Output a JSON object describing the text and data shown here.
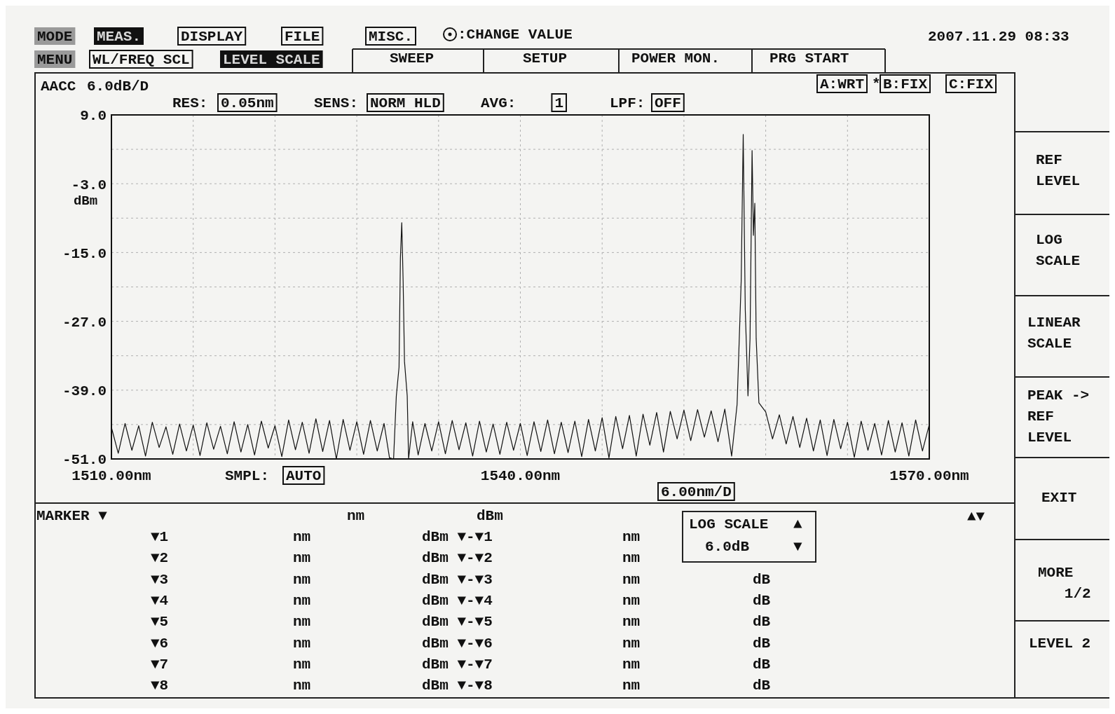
{
  "chart_data": {
    "type": "line",
    "ylabel": "dBm",
    "xlim": [
      1510,
      1570
    ],
    "ylim": [
      -51,
      9
    ],
    "grid": true,
    "xticks": [
      {
        "value": 1510,
        "label": "1510.00nm"
      },
      {
        "value": 1516,
        "label": null
      },
      {
        "value": 1522,
        "label": null
      },
      {
        "value": 1528,
        "label": null
      },
      {
        "value": 1534,
        "label": null
      },
      {
        "value": 1540,
        "label": "1540.00nm"
      },
      {
        "value": 1546,
        "label": null
      },
      {
        "value": 1552,
        "label": null
      },
      {
        "value": 1558,
        "label": null
      },
      {
        "value": 1564,
        "label": null
      },
      {
        "value": 1570,
        "label": "1570.00nm"
      }
    ],
    "yticks": [
      {
        "value": 9,
        "label": "9.0"
      },
      {
        "value": 3,
        "label": null
      },
      {
        "value": -3,
        "label": "-3.0"
      },
      {
        "value": -9,
        "label": null
      },
      {
        "value": -15,
        "label": "-15.0"
      },
      {
        "value": -21,
        "label": null
      },
      {
        "value": -27,
        "label": "-27.0"
      },
      {
        "value": -33,
        "label": null
      },
      {
        "value": -39,
        "label": "-39.0"
      },
      {
        "value": -45,
        "label": null
      },
      {
        "value": -51,
        "label": "-51.0"
      }
    ],
    "x": [
      1510,
      1510.5,
      1511,
      1511.5,
      1512,
      1512.5,
      1513,
      1513.5,
      1514,
      1514.5,
      1515,
      1515.5,
      1516,
      1516.5,
      1517,
      1517.5,
      1518,
      1518.5,
      1519,
      1519.5,
      1520,
      1520.5,
      1521,
      1521.5,
      1522,
      1522.5,
      1523,
      1523.5,
      1524,
      1524.5,
      1525,
      1525.5,
      1526,
      1526.5,
      1527,
      1527.5,
      1528,
      1528.5,
      1529,
      1529.5,
      1530,
      1530.4,
      1530.7,
      1530.9,
      1531.1,
      1531.2,
      1531.3,
      1531.4,
      1531.5,
      1531.7,
      1531.8,
      1532.1,
      1532.5,
      1533,
      1533.5,
      1534,
      1534.5,
      1535,
      1535.5,
      1536,
      1536.5,
      1537,
      1537.5,
      1538,
      1538.5,
      1539,
      1539.5,
      1540,
      1540.5,
      1541,
      1541.5,
      1542,
      1542.5,
      1543,
      1543.5,
      1544,
      1544.5,
      1545,
      1545.5,
      1546,
      1546.5,
      1547,
      1547.5,
      1548,
      1548.5,
      1549,
      1549.5,
      1550,
      1550.5,
      1551,
      1551.5,
      1552,
      1552.5,
      1553,
      1553.5,
      1554,
      1554.5,
      1555,
      1555.5,
      1555.9,
      1556.2,
      1556.35,
      1556.5,
      1556.7,
      1556.85,
      1557,
      1557.1,
      1557.2,
      1557.3,
      1557.5,
      1558,
      1558.5,
      1559,
      1559.5,
      1560,
      1560.5,
      1561,
      1561.5,
      1562,
      1562.5,
      1563,
      1563.5,
      1564,
      1564.5,
      1565,
      1565.5,
      1566,
      1566.5,
      1567,
      1567.5,
      1568,
      1568.5,
      1569,
      1569.5,
      1570
    ],
    "series": [
      {
        "color": "#111111",
        "values": [
          -45.5,
          -50,
          -44.8,
          -49.5,
          -45.2,
          -50.5,
          -44.6,
          -49,
          -45.4,
          -50.2,
          -44.9,
          -49.6,
          -45.1,
          -50.4,
          -44.7,
          -49.3,
          -45.3,
          -50.1,
          -44.5,
          -49.8,
          -45,
          -50.3,
          -44.4,
          -49.1,
          -45.2,
          -50.6,
          -44.2,
          -49.4,
          -44.6,
          -50,
          -44,
          -49.7,
          -44.3,
          -51,
          -44.1,
          -49.5,
          -44.5,
          -50.2,
          -44.3,
          -49.6,
          -44.8,
          -50.8,
          -51,
          -40,
          -35,
          -16,
          -9.8,
          -20,
          -34,
          -40,
          -51,
          -44.5,
          -50.3,
          -44.8,
          -49.6,
          -44.5,
          -50.1,
          -44.3,
          -49.4,
          -44.7,
          -50.5,
          -44.4,
          -49.8,
          -44.9,
          -50.2,
          -44.6,
          -49.5,
          -44.8,
          -50.4,
          -44.5,
          -49.7,
          -44.2,
          -50.1,
          -44.6,
          -49.9,
          -44.4,
          -50.6,
          -44.1,
          -49.6,
          -43.8,
          -50.8,
          -43.6,
          -49.2,
          -43.4,
          -50.5,
          -43.2,
          -48.6,
          -42.9,
          -49.8,
          -42.7,
          -47.5,
          -42.5,
          -47.8,
          -42.4,
          -47.2,
          -42.6,
          -48,
          -42.3,
          -50.5,
          -41.5,
          -20,
          5.6,
          -25,
          -40,
          -30,
          2.8,
          -12,
          -6.4,
          -30,
          -41.2,
          -42.8,
          -47.5,
          -43.3,
          -48.4,
          -43.6,
          -49,
          -43.9,
          -49.6,
          -44.2,
          -50.4,
          -44.1,
          -49.2,
          -44.6,
          -50.7,
          -44.4,
          -49.5,
          -44.8,
          -50.3,
          -44.3,
          -49.8,
          -44.7,
          -50.5,
          -44.2,
          -49.6,
          -45
        ]
      }
    ],
    "annotations": [
      "MODE",
      "MEAS.",
      "DISPLAY",
      "FILE",
      "MISC.",
      ":CHANGE VALUE",
      "2007.11.29 08:33",
      "MENU",
      "WL/FREQ SCL",
      "LEVEL SCALE",
      "SWEEP",
      "SETUP",
      "POWER MON.",
      "PRG START",
      "AACC",
      "A:WRT",
      "*",
      "B:FIX",
      "C:FIX",
      "6.0dB/D",
      "RES:",
      "0.05nm",
      "SENS:",
      "NORM HLD",
      "AVG:",
      "1",
      "LPF:",
      "OFF",
      "SMPL:",
      "AUTO",
      "6.00nm/D",
      "REF\nLEVEL",
      "LOG\nSCALE",
      "LINEAR\nSCALE",
      "PEAK ->\nREF\nLEVEL",
      "EXIT",
      "MORE\n   1/2",
      "LEVEL 2",
      "MARKER ▼",
      "nm",
      "dBm",
      "▼1",
      "nm",
      "dBm ▼-▼1",
      "nm",
      "▼2",
      "nm",
      "dBm ▼-▼2",
      "nm",
      "▼3",
      "nm",
      "dBm ▼-▼3",
      "nm",
      "dB",
      "▼4",
      "nm",
      "dBm ▼-▼4",
      "nm",
      "dB",
      "▼5",
      "nm",
      "dBm ▼-▼5",
      "nm",
      "dB",
      "▼6",
      "nm",
      "dBm ▼-▼6",
      "nm",
      "dB",
      "▼7",
      "nm",
      "dBm ▼-▼7",
      "nm",
      "dB",
      "▼8",
      "nm",
      "dBm ▼-▼8",
      "nm",
      "dB",
      "LOG SCALE",
      "6.0dB",
      "▲",
      "▼",
      "▲▼"
    ]
  }
}
